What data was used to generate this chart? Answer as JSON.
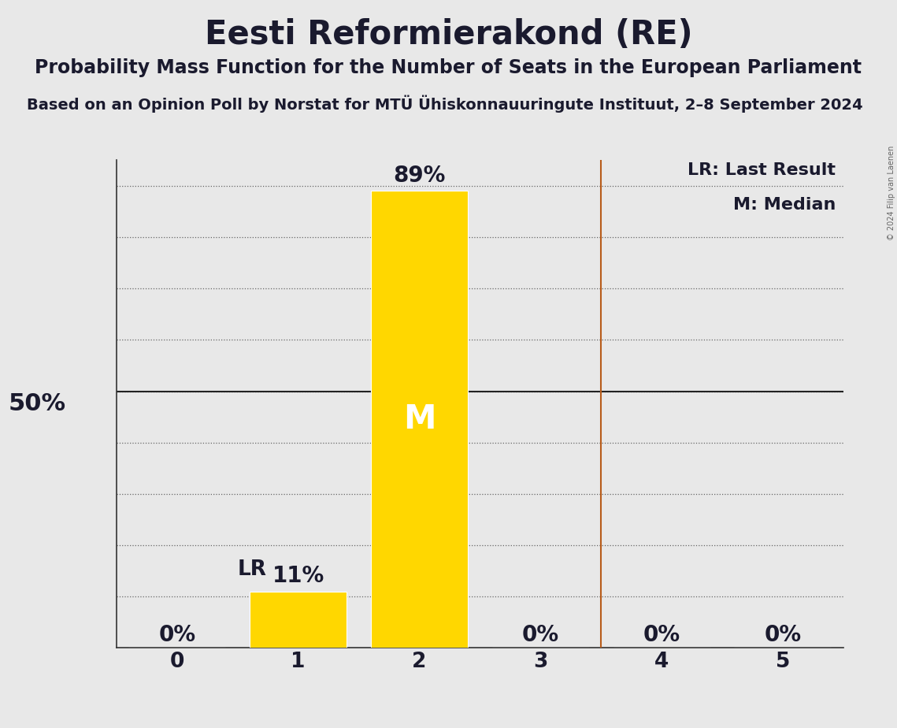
{
  "title": "Eesti Reformierakond (RE)",
  "subtitle1": "Probability Mass Function for the Number of Seats in the European Parliament",
  "subtitle2": "Based on an Opinion Poll by Norstat for MTÜ Ühiskonnauuringute Instituut, 2–8 September 2024",
  "copyright": "© 2024 Filip van Laenen",
  "categories": [
    0,
    1,
    2,
    3,
    4,
    5
  ],
  "values": [
    0.0,
    0.11,
    0.89,
    0.0,
    0.0,
    0.0
  ],
  "bar_color": "#FFD700",
  "bar_labels": [
    "0%",
    "11%",
    "89%",
    "0%",
    "0%",
    "0%"
  ],
  "median": 2,
  "last_result": 3.5,
  "lr_label": "LR",
  "lr_bar": 1,
  "median_label": "M",
  "background_color": "#e8e8e8",
  "vline_color": "#b85c1a",
  "yticks": [
    0.1,
    0.2,
    0.3,
    0.4,
    0.5,
    0.6,
    0.7,
    0.8,
    0.9
  ],
  "ylim": [
    0,
    0.95
  ],
  "xlim": [
    -0.5,
    5.5
  ],
  "title_fontsize": 30,
  "subtitle1_fontsize": 17,
  "subtitle2_fontsize": 14,
  "tick_fontsize": 19,
  "legend_fontsize": 16,
  "bar_label_fontsize": 20,
  "lr_label_fontsize": 19,
  "fifty_pct_fontsize": 22
}
